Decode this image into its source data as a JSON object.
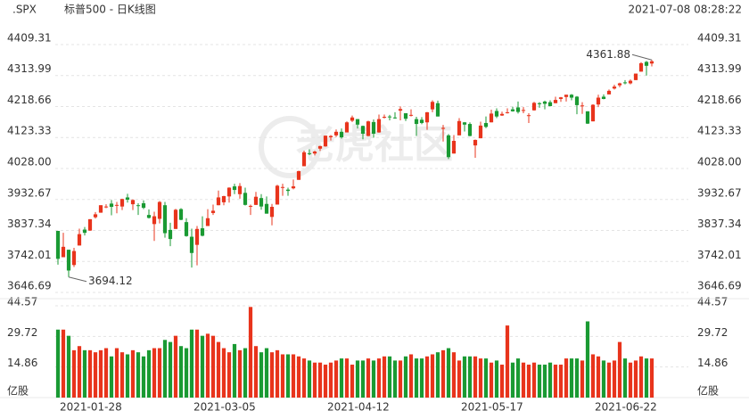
{
  "header": {
    "symbol": ".SPX",
    "name": "标普500 - 日K线图",
    "time": "2021-07-08 08:28:22"
  },
  "watermark": "老虎社区",
  "chart_data": {
    "type": "candlestick",
    "categories": [
      null,
      "2021-01-28",
      null,
      null,
      null,
      null,
      null,
      null,
      null,
      null,
      null,
      null,
      null,
      null,
      null,
      null,
      null,
      null,
      null,
      null,
      null,
      null,
      null,
      null,
      null,
      null,
      "2021-03-05",
      null,
      null,
      null,
      null,
      null,
      null,
      null,
      null,
      null,
      null,
      null,
      null,
      null,
      null,
      null,
      null,
      null,
      null,
      null,
      null,
      null,
      null,
      null,
      null,
      "2021-04-12",
      null,
      null,
      null,
      null,
      null,
      null,
      null,
      null,
      null,
      null,
      null,
      null,
      null,
      null,
      null,
      null,
      null,
      null,
      null,
      null,
      null,
      null,
      null,
      null,
      "2021-05-17",
      null,
      null,
      null,
      null,
      null,
      null,
      null,
      null,
      null,
      null,
      null,
      null,
      null,
      null,
      null,
      null,
      null,
      null,
      null,
      null,
      null,
      null,
      null,
      null,
      "2021-06-22",
      null,
      null,
      null,
      null,
      null,
      null,
      null,
      null,
      null,
      null
    ],
    "open": [
      3836,
      3755,
      3778,
      3731,
      3791,
      3840,
      3837,
      3878,
      3892,
      3910,
      3920,
      3916,
      3911,
      3939,
      3918,
      3915,
      3921,
      3885,
      3857,
      3873,
      3915,
      3839,
      3842,
      3903,
      3863,
      3818,
      3793,
      3844,
      3851,
      3891,
      3915,
      3924,
      3942,
      3973,
      3949,
      3953,
      3913,
      3916,
      3937,
      3919,
      3879,
      3917,
      3969,
      3963,
      3967,
      3993,
      4035,
      4075,
      4074,
      4089,
      4096,
      4124,
      4130,
      4141,
      4139,
      4175,
      4180,
      4159,
      4128,
      4171,
      4139,
      4185,
      4188,
      4185,
      4206,
      4198,
      4191,
      4180,
      4178,
      4170,
      4210,
      4229,
      4150,
      4130,
      4074,
      4130,
      4170,
      4165,
      4099,
      4121,
      4168,
      4170,
      4205,
      4191,
      4201,
      4210,
      4216,
      4206,
      4191,
      4207,
      4229,
      4234,
      4232,
      4229,
      4242,
      4248,
      4255,
      4249,
      4220,
      4204,
      4173,
      4225,
      4249,
      4256,
      4274,
      4284,
      4293,
      4290,
      4300,
      4326,
      4356,
      4351
    ],
    "high": [
      3836,
      3830,
      3778,
      3784,
      3843,
      3848,
      3872,
      3894,
      3915,
      3918,
      3931,
      3925,
      3935,
      3950,
      3933,
      3921,
      3930,
      3902,
      3895,
      3928,
      3925,
      3861,
      3904,
      3906,
      3875,
      3843,
      3851,
      3881,
      3903,
      3917,
      3960,
      3944,
      3970,
      3981,
      3983,
      3969,
      3917,
      3956,
      3949,
      3942,
      3919,
      3978,
      3981,
      3969,
      3994,
      4021,
      4083,
      4087,
      4083,
      4098,
      4129,
      4131,
      4148,
      4151,
      4173,
      4191,
      4180,
      4160,
      4175,
      4179,
      4194,
      4194,
      4193,
      4201,
      4219,
      4198,
      4210,
      4187,
      4186,
      4202,
      4238,
      4237,
      4162,
      4134,
      4131,
      4183,
      4171,
      4170,
      4117,
      4172,
      4188,
      4209,
      4213,
      4203,
      4213,
      4218,
      4234,
      4217,
      4198,
      4233,
      4232,
      4237,
      4238,
      4249,
      4248,
      4255,
      4257,
      4251,
      4232,
      4204,
      4226,
      4255,
      4256,
      4271,
      4286,
      4292,
      4300,
      4302,
      4320,
      4355,
      4359,
      4361.88
    ],
    "low": [
      3732,
      3755,
      3694.12,
      3725,
      3791,
      3822,
      3836,
      3874,
      3892,
      3906,
      3884,
      3890,
      3900,
      3923,
      3900,
      3885,
      3903,
      3874,
      3805,
      3859,
      3815,
      3789,
      3842,
      3869,
      3818,
      3723,
      3730,
      3819,
      3851,
      3885,
      3915,
      3915,
      3923,
      3949,
      3935,
      3914,
      3885,
      3916,
      3901,
      3889,
      3853,
      3917,
      3944,
      3944,
      3964,
      3993,
      4035,
      4069,
      4068,
      4082,
      4095,
      4114,
      4125,
      4120,
      4139,
      4171,
      4151,
      4118,
      4127,
      4123,
      4138,
      4182,
      4176,
      4181,
      4176,
      4174,
      4188,
      4128,
      4164,
      4147,
      4201,
      4188,
      4111,
      4057,
      4074,
      4130,
      4142,
      4127,
      4061,
      4121,
      4152,
      4170,
      4183,
      4190,
      4197,
      4203,
      4197,
      4198,
      4168,
      4206,
      4215,
      4210,
      4219,
      4229,
      4233,
      4234,
      4238,
      4195,
      4196,
      4165,
      4173,
      4217,
      4241,
      4256,
      4271,
      4278,
      4287,
      4287,
      4300,
      4326,
      4314,
      4342
    ],
    "close": [
      3750,
      3787,
      3714,
      3774,
      3826,
      3830,
      3872,
      3887,
      3915,
      3911,
      3910,
      3916,
      3934,
      3932,
      3931,
      3913,
      3907,
      3876,
      3881,
      3925,
      3829,
      3811,
      3901,
      3870,
      3820,
      3768,
      3842,
      3821,
      3875,
      3898,
      3939,
      3943,
      3969,
      3962,
      3974,
      3916,
      3913,
      3941,
      3911,
      3889,
      3910,
      3975,
      3971,
      3959,
      3973,
      4020,
      4078,
      4074,
      4080,
      4097,
      4129,
      4128,
      4141,
      4124,
      4170,
      4185,
      4163,
      4135,
      4173,
      4135,
      4180,
      4187,
      4187,
      4183,
      4211,
      4181,
      4193,
      4165,
      4168,
      4201,
      4233,
      4188,
      4153,
      4063,
      4113,
      4174,
      4163,
      4128,
      4116,
      4160,
      4156,
      4197,
      4188,
      4196,
      4201,
      4204,
      4202,
      4208,
      4192,
      4230,
      4226,
      4227,
      4220,
      4239,
      4247,
      4255,
      4246,
      4223,
      4222,
      4166,
      4224,
      4246,
      4242,
      4267,
      4280,
      4290,
      4291,
      4298,
      4320,
      4352,
      4344,
      4358
    ],
    "volume": [
      33,
      33,
      30,
      23,
      25,
      23,
      23,
      22,
      23,
      24,
      20,
      24,
      22,
      21,
      23,
      22,
      20,
      23,
      24,
      24,
      28,
      27,
      30,
      25,
      24,
      33,
      33,
      30,
      31,
      30,
      27,
      24,
      22,
      26,
      23,
      24,
      44,
      25,
      22,
      24,
      22,
      23,
      21,
      21,
      21,
      20,
      19,
      18,
      17,
      17,
      16,
      17,
      18,
      19,
      19,
      16,
      18,
      18,
      19,
      18,
      19,
      20,
      20,
      18,
      18,
      20,
      21,
      19,
      19,
      20,
      21,
      22,
      23,
      24,
      22,
      18,
      20,
      20,
      20,
      19,
      19,
      17,
      18,
      16,
      35,
      17,
      19,
      17,
      16,
      17,
      16,
      16,
      17,
      16,
      16,
      19,
      19,
      19,
      18,
      37,
      21,
      20,
      18,
      17,
      18,
      27,
      19,
      17,
      18,
      20,
      19,
      19
    ],
    "up_color": "#e8341c",
    "down_color": "#1a9a33",
    "ylim": [
      3646.69,
      4409.31
    ],
    "yticks": [
      3646.69,
      3742.01,
      3837.34,
      3932.67,
      {
        "value": 4028,
        "label": "4028.00"
      },
      4123.33,
      4218.66,
      4313.99,
      4409.31
    ],
    "volume_unit": "亿股",
    "y2lim": [
      0,
      44.57
    ],
    "y2ticks": [
      14.86,
      29.72,
      44.57
    ],
    "annotations": [
      {
        "label": "4361.88",
        "value": 4361.88,
        "series": "high"
      },
      {
        "label": "3694.12",
        "value": 3694.12,
        "series": "low"
      }
    ],
    "grid": true
  }
}
